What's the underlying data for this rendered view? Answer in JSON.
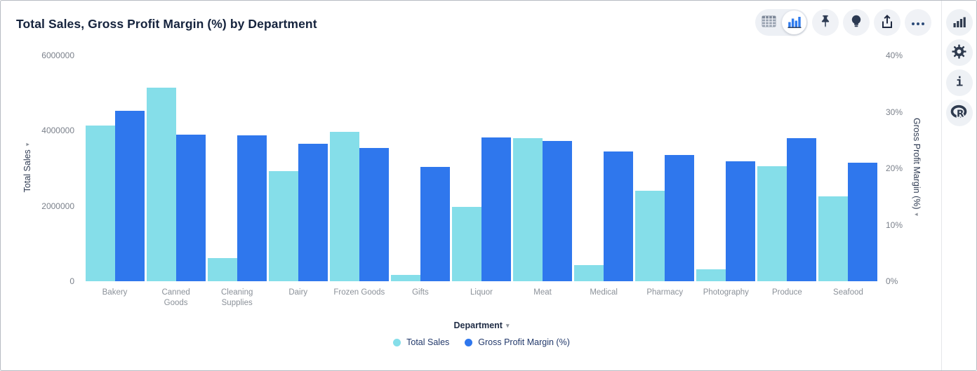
{
  "window": {
    "title": "Total Sales, Gross Profit Margin (%) by Department"
  },
  "icons": {
    "dropdown_caret": "▾"
  },
  "toolbar": {
    "view_toggle": {
      "options": [
        "table-view",
        "chart-view"
      ],
      "selected": "chart-view"
    },
    "buttons": [
      "pin",
      "insights-bulb",
      "export-share",
      "more-options"
    ]
  },
  "sidebar": {
    "buttons": [
      "chart-type",
      "settings",
      "info",
      "r-logo"
    ]
  },
  "colors": {
    "total_sales": "#85DEE9",
    "gross_profit_margin": "#2F77ED",
    "title_text": "#15233d",
    "tick_text": "#7b818b"
  },
  "chart_data": {
    "type": "bar",
    "title": "Total Sales, Gross Profit Margin (%) by Department",
    "grid": false,
    "legend_position": "bottom",
    "categories": [
      "Bakery",
      "Canned Goods",
      "Cleaning Supplies",
      "Dairy",
      "Frozen Goods",
      "Gifts",
      "Liquor",
      "Meat",
      "Medical",
      "Pharmacy",
      "Photography",
      "Produce",
      "Seafood"
    ],
    "series": [
      {
        "name": "Total Sales",
        "axis": "left",
        "color": "#85DEE9",
        "values": [
          4130000,
          5150000,
          620000,
          2920000,
          3960000,
          170000,
          1980000,
          3810000,
          430000,
          2400000,
          310000,
          3060000,
          2250000
        ]
      },
      {
        "name": "Gross Profit Margin (%)",
        "axis": "right",
        "color": "#2F77ED",
        "values": [
          30.2,
          26.0,
          25.9,
          24.3,
          23.6,
          20.2,
          25.5,
          24.8,
          23.0,
          22.4,
          21.3,
          25.3,
          21.0
        ]
      }
    ],
    "x_axis": {
      "label": "Department"
    },
    "left_axis": {
      "label": "Total Sales",
      "min": 0,
      "max": 6000000,
      "ticks": [
        {
          "label": "0",
          "value": 0
        },
        {
          "label": "2000000",
          "value": 2000000
        },
        {
          "label": "4000000",
          "value": 4000000
        },
        {
          "label": "6000000",
          "value": 6000000
        }
      ]
    },
    "right_axis": {
      "label": "Gross Profit Margin (%)",
      "min": 0,
      "max": 40,
      "ticks": [
        {
          "label": "0%",
          "value": 0
        },
        {
          "label": "10%",
          "value": 10
        },
        {
          "label": "20%",
          "value": 20
        },
        {
          "label": "30%",
          "value": 30
        },
        {
          "label": "40%",
          "value": 40
        }
      ]
    }
  }
}
